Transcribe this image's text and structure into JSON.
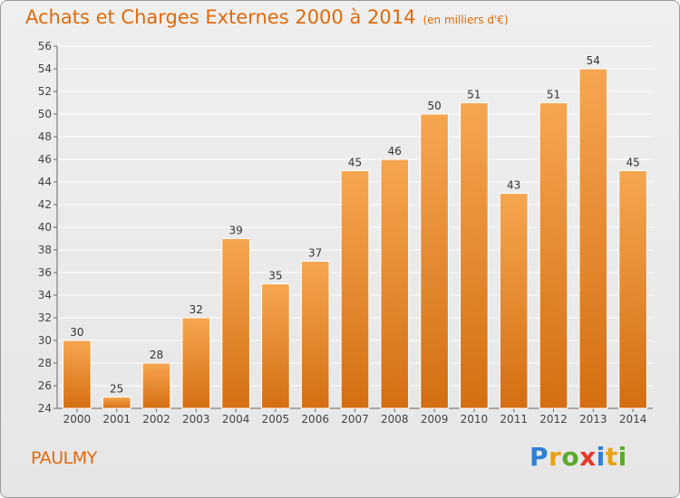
{
  "header": {
    "title": "Achats et Charges Externes 2000 à 2014",
    "unit": "(en milliers d'€)"
  },
  "footer": {
    "commune": "PAULMY",
    "logo_text": "Proxiti"
  },
  "colors": {
    "bar_top": "#f6a650",
    "bar_bottom": "#d46e12",
    "title": "#e06a0a",
    "grid": "#ffffff"
  },
  "chart_data": {
    "type": "bar",
    "title": "Achats et Charges Externes 2000 à 2014",
    "subtitle": "(en milliers d'€)",
    "xlabel": "",
    "ylabel": "",
    "categories": [
      "2000",
      "2001",
      "2002",
      "2003",
      "2004",
      "2005",
      "2006",
      "2007",
      "2008",
      "2009",
      "2010",
      "2011",
      "2012",
      "2013",
      "2014"
    ],
    "values": [
      30,
      25,
      28,
      32,
      39,
      35,
      37,
      45,
      46,
      50,
      51,
      43,
      51,
      54,
      45
    ],
    "ylim": [
      24,
      56
    ],
    "yticks": [
      24,
      26,
      28,
      30,
      32,
      34,
      36,
      38,
      40,
      42,
      44,
      46,
      48,
      50,
      52,
      54,
      56
    ],
    "grid": true,
    "legend": "none"
  }
}
